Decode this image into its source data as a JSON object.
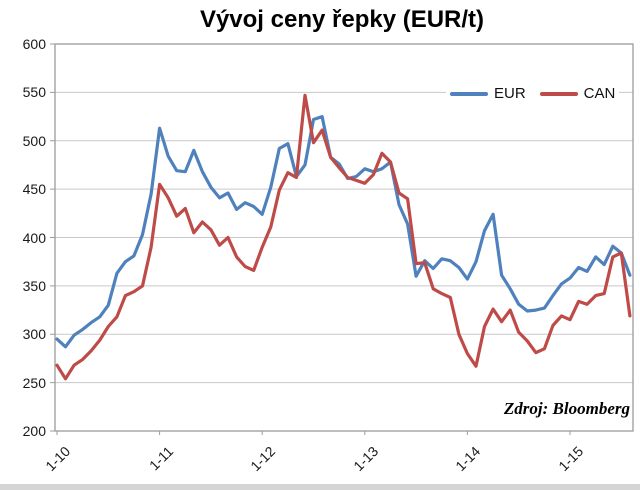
{
  "title": "Vývoj ceny řepky (EUR/t)",
  "source_note": "Zdroj: Bloomberg",
  "legend": [
    {
      "label": "EUR",
      "color": "#4F81BD"
    },
    {
      "label": "CAN",
      "color": "#BE4B48"
    }
  ],
  "colors": {
    "eur_line": "#4F81BD",
    "can_line": "#BE4B48",
    "gridline": "#c9c9c9",
    "plot_border": "#9c9c9c",
    "text": "#1a1a1a"
  },
  "chart_data": {
    "type": "line",
    "title": "Vývoj ceny řepky (EUR/t)",
    "xlabel": "",
    "ylabel": "",
    "ylim": [
      200,
      600
    ],
    "y_ticks": [
      200,
      250,
      300,
      350,
      400,
      450,
      500,
      550,
      600
    ],
    "x_tick_labels": [
      "1-10",
      "1-11",
      "1-12",
      "1-13",
      "1-14",
      "1-15"
    ],
    "grid": "horizontal",
    "legend_position": "top-right-inside",
    "x": [
      "2010-01",
      "2010-02",
      "2010-03",
      "2010-04",
      "2010-05",
      "2010-06",
      "2010-07",
      "2010-08",
      "2010-09",
      "2010-10",
      "2010-11",
      "2010-12",
      "2011-01",
      "2011-02",
      "2011-03",
      "2011-04",
      "2011-05",
      "2011-06",
      "2011-07",
      "2011-08",
      "2011-09",
      "2011-10",
      "2011-11",
      "2011-12",
      "2012-01",
      "2012-02",
      "2012-03",
      "2012-04",
      "2012-05",
      "2012-06",
      "2012-07",
      "2012-08",
      "2012-09",
      "2012-10",
      "2012-11",
      "2012-12",
      "2013-01",
      "2013-02",
      "2013-03",
      "2013-04",
      "2013-05",
      "2013-06",
      "2013-07",
      "2013-08",
      "2013-09",
      "2013-10",
      "2013-11",
      "2013-12",
      "2014-01",
      "2014-02",
      "2014-03",
      "2014-04",
      "2014-05",
      "2014-06",
      "2014-07",
      "2014-08",
      "2014-09",
      "2014-10",
      "2014-11",
      "2014-12",
      "2015-01",
      "2015-02",
      "2015-03",
      "2015-04",
      "2015-05",
      "2015-06",
      "2015-07",
      "2015-08"
    ],
    "series": [
      {
        "name": "EUR",
        "color": "#4F81BD",
        "values": [
          295,
          287,
          299,
          305,
          312,
          318,
          330,
          363,
          375,
          381,
          403,
          445,
          513,
          484,
          469,
          468,
          490,
          468,
          452,
          441,
          446,
          429,
          436,
          432,
          424,
          452,
          492,
          497,
          463,
          475,
          522,
          525,
          483,
          476,
          461,
          463,
          471,
          468,
          471,
          478,
          434,
          414,
          360,
          376,
          368,
          378,
          376,
          369,
          357,
          375,
          407,
          424,
          361,
          347,
          331,
          324,
          325,
          327,
          340,
          352,
          358,
          369,
          365,
          380,
          372,
          391,
          384,
          361
        ]
      },
      {
        "name": "CAN",
        "color": "#BE4B48",
        "values": [
          268,
          254,
          268,
          274,
          283,
          294,
          308,
          318,
          340,
          344,
          350,
          390,
          455,
          441,
          422,
          430,
          405,
          416,
          408,
          392,
          400,
          380,
          370,
          366,
          390,
          411,
          449,
          467,
          462,
          547,
          498,
          511,
          483,
          472,
          462,
          459,
          456,
          465,
          487,
          478,
          446,
          440,
          373,
          374,
          347,
          342,
          338,
          300,
          280,
          267,
          308,
          326,
          313,
          325,
          302,
          293,
          281,
          285,
          309,
          319,
          315,
          334,
          331,
          340,
          342,
          380,
          384,
          319
        ]
      }
    ]
  }
}
